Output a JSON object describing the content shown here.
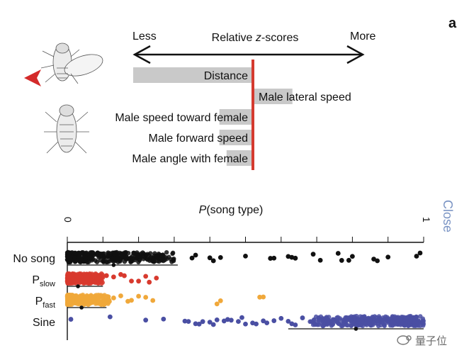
{
  "panel_label": "a",
  "zscore": {
    "left_label": "Less",
    "right_label": "More",
    "title_prefix": "Relative ",
    "title_italic": "z",
    "title_suffix": "-scores"
  },
  "close_label": "Close",
  "watermark_text": "量子位",
  "colors": {
    "axis_red": "#d43a2f",
    "bar_gray": "#c9c9c9",
    "no_song": "#111111",
    "p_slow": "#d83a2e",
    "p_fast": "#f0a83a",
    "sine": "#4a4fa3",
    "close": "#7a94c4",
    "marker_red": "#d42a2a"
  },
  "chart_data": [
    {
      "type": "bar",
      "orientation": "horizontal",
      "title": "Relative z-scores",
      "xlim": [
        -1,
        1
      ],
      "categories": [
        "Distance",
        "Male lateral speed",
        "Male speed toward female",
        "Male forward speed",
        "Male angle with female"
      ],
      "values": [
        -1.0,
        0.33,
        -0.28,
        -0.28,
        -0.22
      ]
    },
    {
      "type": "scatter",
      "title": "P(song type)",
      "title_italic": "P",
      "title_rest": "(song type)",
      "xlim": [
        0,
        1
      ],
      "xticks": [
        "0",
        "1"
      ],
      "categories": [
        "No song",
        "Pslow",
        "Pfast",
        "Sine"
      ],
      "category_display": [
        {
          "main": "No song",
          "sub": ""
        },
        {
          "main": "P",
          "sub": "slow"
        },
        {
          "main": "P",
          "sub": "fast"
        },
        {
          "main": "Sine",
          "sub": ""
        }
      ],
      "series": [
        {
          "name": "No song",
          "dense_range": [
            0.0,
            0.3
          ],
          "sparse_points": [
            0.35,
            0.36,
            0.4,
            0.41,
            0.43,
            0.5,
            0.57,
            0.58,
            0.62,
            0.63,
            0.64,
            0.69,
            0.71,
            0.76,
            0.77,
            0.79,
            0.8,
            0.86,
            0.87,
            0.9,
            0.98,
            0.99
          ],
          "mean": 0.13,
          "ci": [
            0.0,
            0.31
          ]
        },
        {
          "name": "Pslow",
          "dense_range": [
            0.0,
            0.1
          ],
          "sparse_points": [
            0.11,
            0.13,
            0.15,
            0.16,
            0.18,
            0.2,
            0.22,
            0.23,
            0.25
          ],
          "mean": 0.03,
          "ci": [
            0.0,
            0.1
          ]
        },
        {
          "name": "Pfast",
          "dense_range": [
            0.0,
            0.12
          ],
          "sparse_points": [
            0.13,
            0.15,
            0.17,
            0.18,
            0.2,
            0.22,
            0.24,
            0.42,
            0.43,
            0.54,
            0.55
          ],
          "mean": 0.04,
          "ci": [
            0.0,
            0.11
          ]
        },
        {
          "name": "Sine",
          "dense_range": [
            0.68,
            1.0
          ],
          "sparse_points": [
            0.01,
            0.12,
            0.22,
            0.27,
            0.33,
            0.34,
            0.36,
            0.37,
            0.38,
            0.4,
            0.41,
            0.42,
            0.44,
            0.45,
            0.46,
            0.48,
            0.49,
            0.5,
            0.52,
            0.53,
            0.55,
            0.56,
            0.58,
            0.6,
            0.62,
            0.63,
            0.64,
            0.66
          ],
          "mean": 0.81,
          "ci": [
            0.62,
            1.0
          ]
        }
      ]
    }
  ]
}
